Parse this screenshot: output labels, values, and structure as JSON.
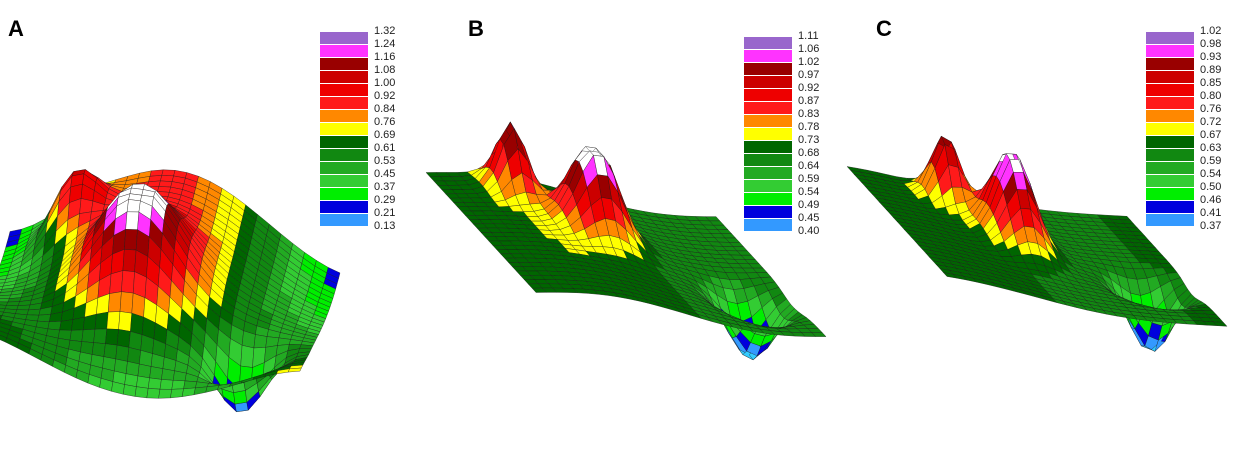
{
  "chart_data": [
    {
      "type": "surface3d",
      "panel_label": "A",
      "colorbar_ticks": [
        "1.32",
        "1.24",
        "1.16",
        "1.08",
        "1.00",
        "0.92",
        "0.84",
        "0.76",
        "0.69",
        "0.61",
        "0.53",
        "0.45",
        "0.37",
        "0.29",
        "0.21",
        "0.13"
      ],
      "colorbar_colors": [
        "#9966cc",
        "#ff33ff",
        "#990000",
        "#cc0000",
        "#ee0000",
        "#ff1a1a",
        "#ff8800",
        "#ffff00",
        "#006600",
        "#118811",
        "#22aa22",
        "#33cc33",
        "#00ee00",
        "#0000dd",
        "#3399ff",
        "#33ccff"
      ]
    },
    {
      "type": "surface3d",
      "panel_label": "B",
      "colorbar_ticks": [
        "1.11",
        "1.06",
        "1.02",
        "0.97",
        "0.92",
        "0.87",
        "0.83",
        "0.78",
        "0.73",
        "0.68",
        "0.64",
        "0.59",
        "0.54",
        "0.49",
        "0.45",
        "0.40"
      ],
      "colorbar_colors": [
        "#9966cc",
        "#ff33ff",
        "#990000",
        "#cc0000",
        "#ee0000",
        "#ff1a1a",
        "#ff8800",
        "#ffff00",
        "#006600",
        "#118811",
        "#22aa22",
        "#33cc33",
        "#00ee00",
        "#0000dd",
        "#3399ff",
        "#33ccff"
      ]
    },
    {
      "type": "surface3d",
      "panel_label": "C",
      "colorbar_ticks": [
        "1.02",
        "0.98",
        "0.93",
        "0.89",
        "0.85",
        "0.80",
        "0.76",
        "0.72",
        "0.67",
        "0.63",
        "0.59",
        "0.54",
        "0.50",
        "0.46",
        "0.41",
        "0.37"
      ],
      "colorbar_colors": [
        "#9966cc",
        "#ff33ff",
        "#990000",
        "#cc0000",
        "#ee0000",
        "#ff1a1a",
        "#ff8800",
        "#ffff00",
        "#006600",
        "#118811",
        "#22aa22",
        "#33cc33",
        "#00ee00",
        "#0000dd",
        "#3399ff",
        "#33ccff"
      ]
    }
  ]
}
